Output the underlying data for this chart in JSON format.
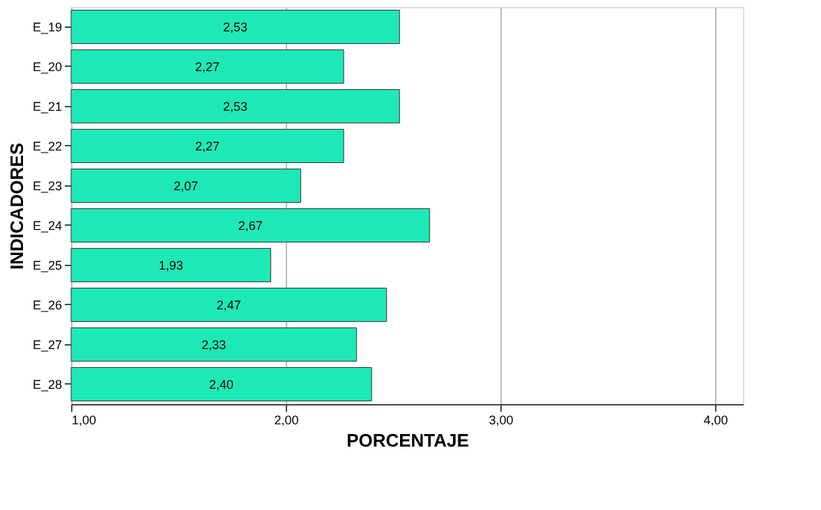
{
  "chart_data": {
    "type": "bar",
    "orientation": "horizontal",
    "xlabel": "PORCENTAJE",
    "ylabel": "INDICADORES",
    "categories": [
      "E_19",
      "E_20",
      "E_21",
      "E_22",
      "E_23",
      "E_24",
      "E_25",
      "E_26",
      "E_27",
      "E_28"
    ],
    "values": [
      2.53,
      2.27,
      2.53,
      2.27,
      2.07,
      2.67,
      1.93,
      2.47,
      2.33,
      2.4
    ],
    "value_labels": [
      "2,53",
      "2,27",
      "2,53",
      "2,27",
      "2,07",
      "2,67",
      "1,93",
      "2,47",
      "2,33",
      "2,40"
    ],
    "color": "#1de9b6",
    "xlim": [
      1,
      4.13
    ],
    "xticks": [
      {
        "value": 1,
        "label": "1,00"
      },
      {
        "value": 2,
        "label": "2,00"
      },
      {
        "value": 3,
        "label": "3,00"
      },
      {
        "value": 4,
        "label": "4,00"
      }
    ],
    "grid": "x"
  }
}
